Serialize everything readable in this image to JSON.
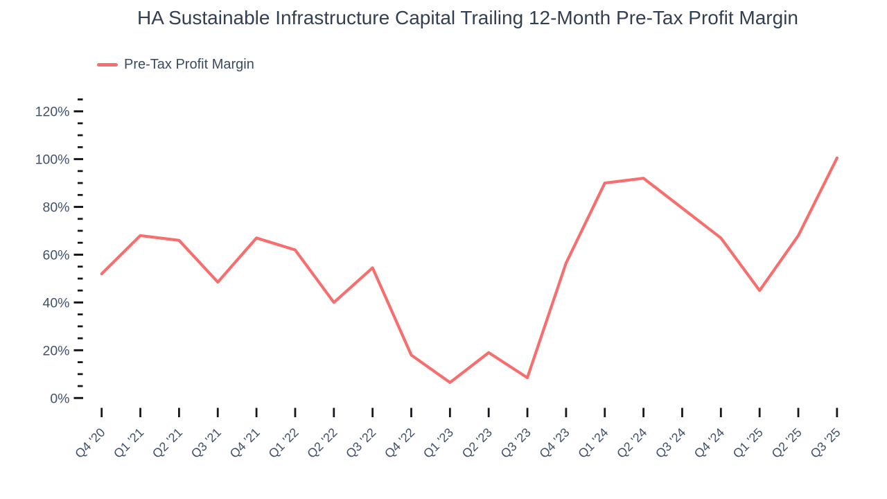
{
  "title": "HA Sustainable Infrastructure Capital Trailing 12-Month Pre-Tax Profit Margin",
  "legend": {
    "label": "Pre-Tax Profit Margin"
  },
  "colors": {
    "line": "#f76e6e",
    "title_text": "#343f52",
    "legend_text": "#3c4a61",
    "axis_text": "#42506a",
    "tick": "#16181d",
    "background": "#ffffff"
  },
  "chart_data": {
    "type": "line",
    "title": "HA Sustainable Infrastructure Capital Trailing 12-Month Pre-Tax Profit Margin",
    "categories": [
      "Q4 '20",
      "Q1 '21",
      "Q2 '21",
      "Q3 '21",
      "Q4 '21",
      "Q1 '22",
      "Q2 '22",
      "Q3 '22",
      "Q4 '22",
      "Q1 '23",
      "Q2 '23",
      "Q3 '23",
      "Q4 '23",
      "Q1 '24",
      "Q2 '24",
      "Q3 '24",
      "Q4 '24",
      "Q1 '25",
      "Q2 '25",
      "Q3 '25"
    ],
    "series": [
      {
        "name": "Pre-Tax Profit Margin",
        "values": [
          52,
          68,
          66,
          48.5,
          67,
          62,
          40,
          54.5,
          18,
          6.5,
          19,
          8.5,
          56.5,
          90,
          92,
          79.5,
          67,
          45,
          68,
          100.5
        ]
      }
    ],
    "unit": "%",
    "xlabel": "",
    "ylabel": "",
    "ylim": [
      0,
      125
    ],
    "y_major_step": 20,
    "y_minor_step": 5,
    "y_ticks": [
      "0%",
      "20%",
      "40%",
      "60%",
      "80%",
      "100%",
      "120%"
    ],
    "grid": false,
    "legend_position": "top-left"
  }
}
